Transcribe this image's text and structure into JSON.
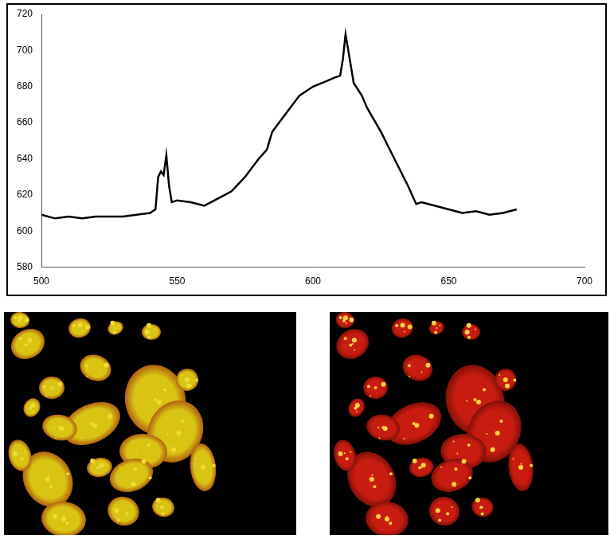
{
  "chart_data": {
    "type": "line",
    "x": [
      500,
      505,
      510,
      515,
      520,
      525,
      530,
      535,
      540,
      542,
      543,
      544,
      545,
      546,
      547,
      548,
      550,
      555,
      560,
      565,
      570,
      575,
      580,
      583,
      585,
      590,
      595,
      600,
      605,
      608,
      610,
      611,
      612,
      613,
      615,
      618,
      620,
      625,
      630,
      635,
      638,
      640,
      645,
      650,
      655,
      660,
      665,
      670,
      675
    ],
    "values": [
      609,
      607,
      608,
      607,
      608,
      608,
      608,
      609,
      610,
      612,
      630,
      633,
      631,
      642,
      625,
      616,
      617,
      616,
      614,
      618,
      622,
      630,
      640,
      645,
      655,
      665,
      675,
      680,
      683,
      685,
      686,
      695,
      709,
      700,
      682,
      675,
      668,
      655,
      640,
      625,
      615,
      616,
      614,
      612,
      610,
      611,
      609,
      610,
      612
    ],
    "color": "#000000",
    "xlim": [
      500,
      700
    ],
    "xticks": [
      500,
      550,
      600,
      650,
      700
    ],
    "ylim": [
      580,
      720
    ],
    "yticks": [
      580,
      600,
      620,
      640,
      660,
      680,
      700,
      720
    ],
    "grid": false
  }
}
